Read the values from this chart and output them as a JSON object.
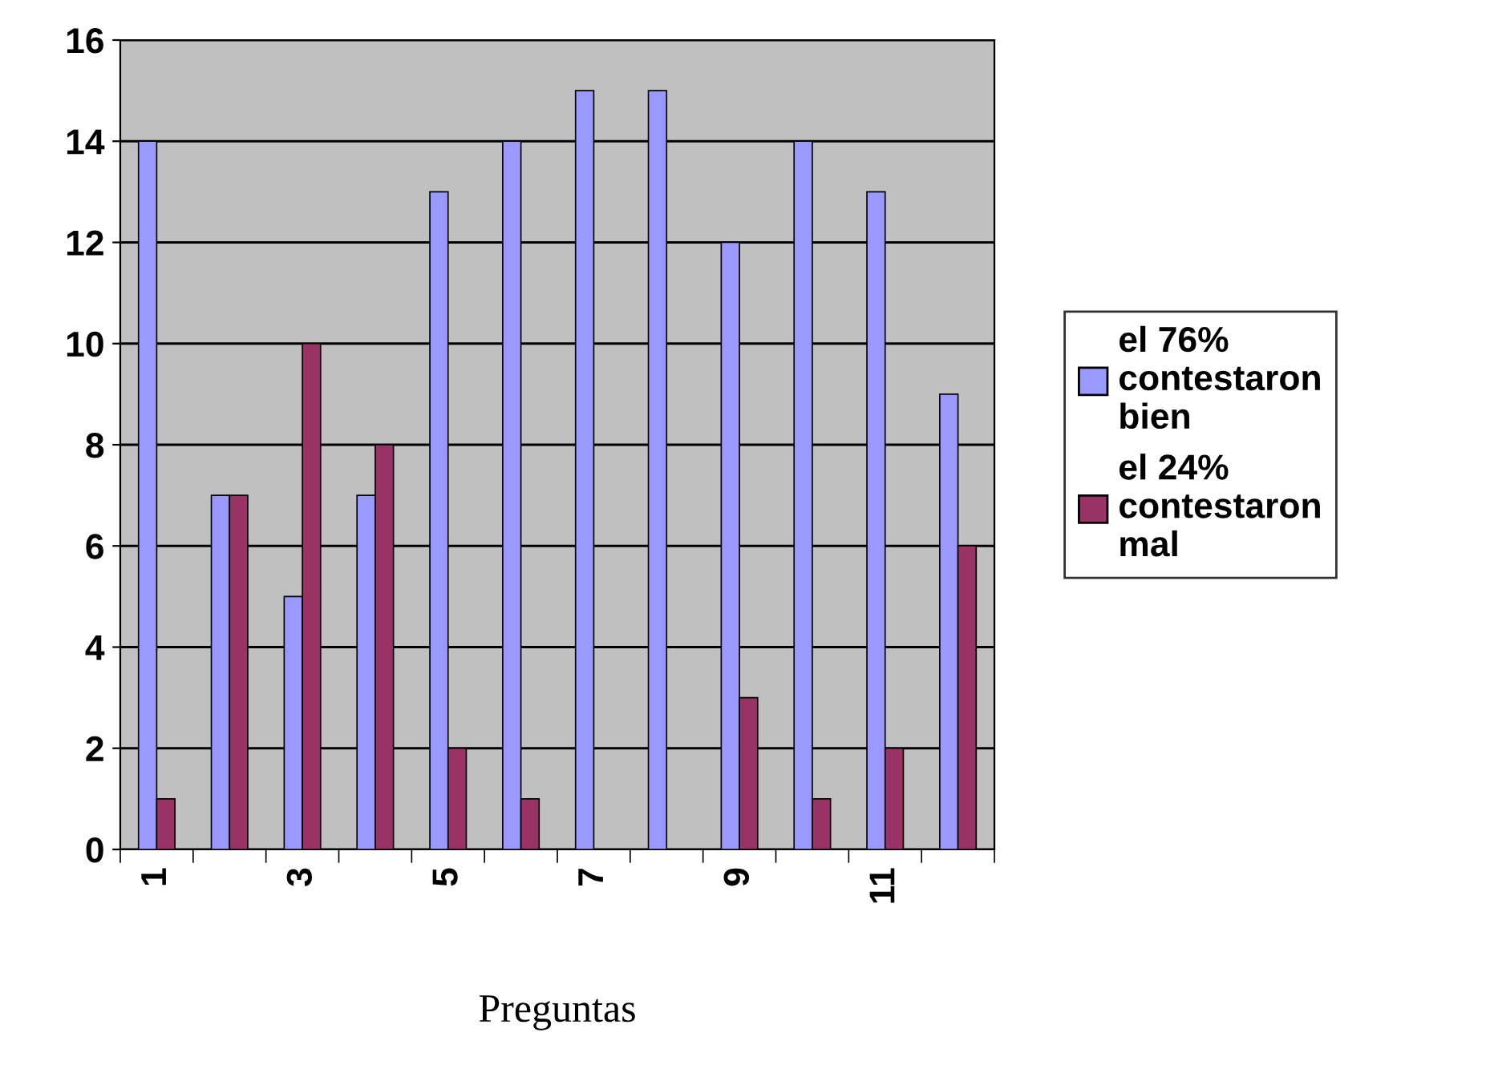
{
  "chart_data": {
    "type": "bar",
    "xlabel": "Preguntas",
    "categories": [
      "1",
      null,
      "3",
      null,
      "5",
      null,
      "7",
      null,
      "9",
      null,
      "11",
      null
    ],
    "series": [
      {
        "name": "el 76%\ncontestaron\nbien",
        "color": "#9999ff",
        "values": [
          14,
          7,
          5,
          7,
          13,
          14,
          15,
          15,
          12,
          14,
          13,
          9
        ]
      },
      {
        "name": "el 24%\ncontestaron\nmal",
        "color": "#993366",
        "values": [
          1,
          7,
          10,
          8,
          2,
          1,
          0,
          0,
          3,
          1,
          2,
          6
        ]
      }
    ],
    "ylim": [
      0,
      16
    ],
    "yticks": [
      0,
      2,
      4,
      6,
      8,
      10,
      12,
      14,
      16
    ],
    "grid": "y",
    "legend": "right"
  }
}
